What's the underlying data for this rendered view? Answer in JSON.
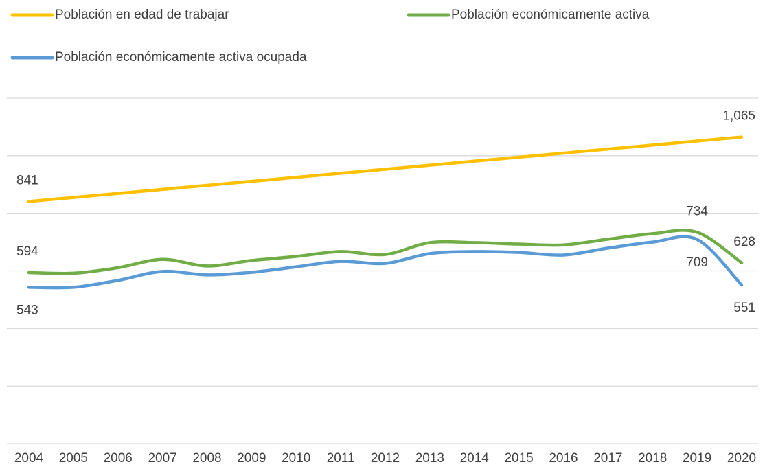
{
  "chart_data": {
    "type": "line",
    "categories": [
      "2004",
      "2005",
      "2006",
      "2007",
      "2008",
      "2009",
      "2010",
      "2011",
      "2012",
      "2013",
      "2014",
      "2015",
      "2016",
      "2017",
      "2018",
      "2019",
      "2020"
    ],
    "ylim": [
      0,
      1200
    ],
    "yticks": [
      0,
      200,
      400,
      600,
      800,
      1000,
      1200
    ],
    "grid": true,
    "legend": "top",
    "smooth": true,
    "series": [
      {
        "name": "Población en edad de trabajar",
        "color": "#ffc000",
        "label_side": "above",
        "values": [
          841,
          855,
          869,
          883,
          897,
          911,
          925,
          939,
          953,
          967,
          981,
          995,
          1009,
          1023,
          1037,
          1051,
          1065
        ],
        "value_labels": [
          "841",
          null,
          null,
          null,
          null,
          null,
          null,
          null,
          null,
          null,
          null,
          null,
          null,
          null,
          null,
          null,
          "1,065"
        ]
      },
      {
        "name": "Población económicamente activa",
        "color": "#70ad47",
        "label_side": "above",
        "values": [
          594,
          592,
          611,
          640,
          617,
          636,
          650,
          667,
          657,
          698,
          698,
          693,
          690,
          710,
          729,
          734,
          628
        ],
        "value_labels": [
          "594",
          null,
          null,
          null,
          null,
          null,
          null,
          null,
          null,
          null,
          null,
          null,
          null,
          null,
          null,
          "734",
          "628"
        ]
      },
      {
        "name": "Población económicamente activa ocupada",
        "color": "#5b9bd5",
        "label_side": "below",
        "values": [
          543,
          543,
          567,
          598,
          586,
          595,
          614,
          633,
          626,
          660,
          667,
          664,
          655,
          679,
          700,
          709,
          551
        ],
        "value_labels": [
          "543",
          null,
          null,
          null,
          null,
          null,
          null,
          null,
          null,
          null,
          null,
          null,
          null,
          null,
          null,
          "709",
          "551"
        ]
      }
    ]
  }
}
